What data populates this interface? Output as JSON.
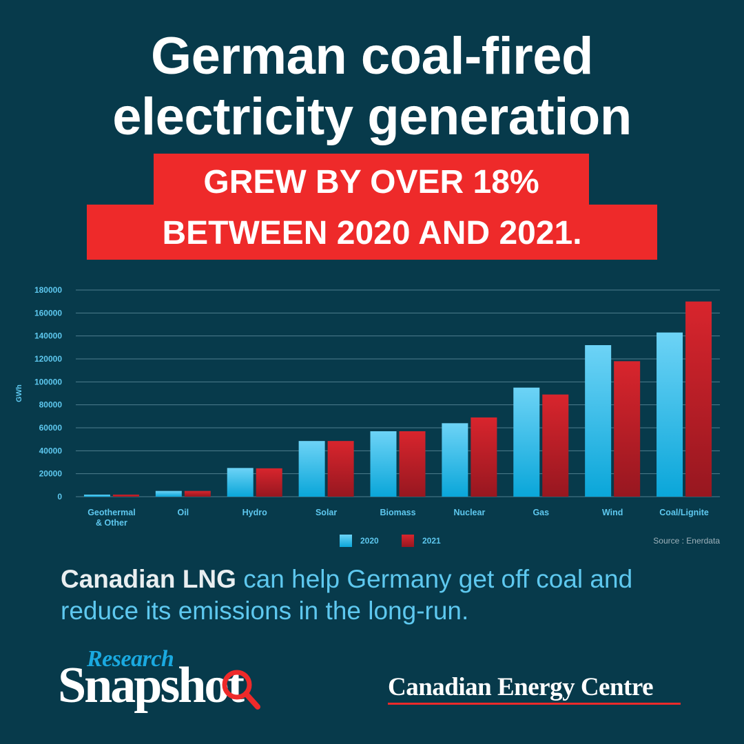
{
  "headline": {
    "line1": "German coal-fired",
    "line2": "electricity generation"
  },
  "banner": {
    "line1": "GREW BY OVER 18%",
    "line2": "BETWEEN 2020 AND 2021."
  },
  "chart_data": {
    "type": "bar",
    "ylabel": "GWh",
    "ylim": [
      0,
      180000
    ],
    "yticks": [
      "0",
      "20000",
      "40000",
      "60000",
      "80000",
      "100000",
      "120000",
      "140000",
      "160000",
      "180000"
    ],
    "categories": [
      [
        "Geothermal",
        "& Other"
      ],
      [
        "Oil"
      ],
      [
        "Hydro"
      ],
      [
        "Solar"
      ],
      [
        "Biomass"
      ],
      [
        "Nuclear"
      ],
      [
        "Gas"
      ],
      [
        "Wind"
      ],
      [
        "Coal/Lignite"
      ]
    ],
    "series": [
      {
        "name": "2020",
        "color": "#3dbde9",
        "values": [
          1800,
          5000,
          25000,
          48500,
          57000,
          64000,
          95000,
          132000,
          143000
        ]
      },
      {
        "name": "2021",
        "color": "#c62028",
        "values": [
          1800,
          5000,
          24700,
          48500,
          57000,
          69000,
          89000,
          118000,
          170000
        ]
      }
    ],
    "grid": true,
    "legend": "bottom-center",
    "source": "Source : Enerdata"
  },
  "tagline": {
    "strong": "Canadian LNG",
    "rest": " can help Germany get off coal and reduce its emissions in the long-run."
  },
  "brand": {
    "research": "Research",
    "snapshot": "Snapshot",
    "org": "Canadian Energy Centre"
  },
  "colors": {
    "background": "#073a4b",
    "accent_red": "#ee2a2a",
    "accent_blue": "#5ec8ef"
  }
}
